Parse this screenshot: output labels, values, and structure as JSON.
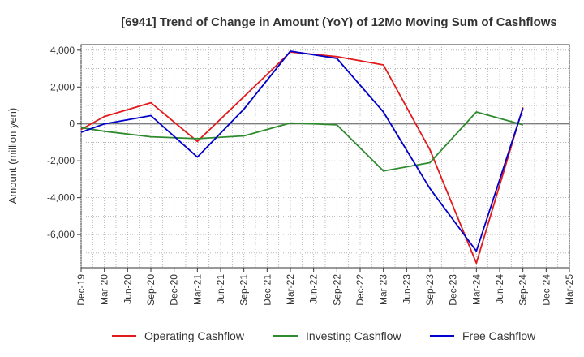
{
  "chart_data": {
    "type": "line",
    "title": "[6941]  Trend of Change in Amount (YoY) of 12Mo Moving Sum of Cashflows",
    "xlabel": "",
    "ylabel": "Amount (million yen)",
    "x": [
      "Dec-19",
      "Mar-20",
      "Jun-20",
      "Sep-20",
      "Dec-20",
      "Mar-21",
      "Jun-21",
      "Sep-21",
      "Dec-21",
      "Mar-22",
      "Jun-22",
      "Sep-22",
      "Dec-22",
      "Mar-23",
      "Jun-23",
      "Sep-23",
      "Dec-23",
      "Mar-24",
      "Jun-24",
      "Sep-24",
      "Dec-24",
      "Mar-25"
    ],
    "ylim": [
      -7800,
      4300
    ],
    "yticks": [
      4000,
      2000,
      0,
      -2000,
      -4000,
      -6000
    ],
    "ytick_labels": [
      "4,000",
      "2,000",
      "0",
      "-2,000",
      "-4,000",
      "-6,000"
    ],
    "grid": true,
    "legend_position": "bottom",
    "series": [
      {
        "name": "Operating Cashflow",
        "color": "#e31a1c",
        "values": [
          -300,
          400,
          null,
          1150,
          null,
          -950,
          null,
          null,
          null,
          3900,
          null,
          3650,
          null,
          3200,
          null,
          -1400,
          null,
          -7550,
          null,
          900,
          null,
          null
        ]
      },
      {
        "name": "Investing Cashflow",
        "color": "#2e8b2e",
        "values": [
          -200,
          -400,
          null,
          -700,
          null,
          -800,
          null,
          -650,
          null,
          50,
          null,
          -50,
          null,
          -2550,
          null,
          -2100,
          null,
          650,
          null,
          -50,
          null,
          null
        ]
      },
      {
        "name": "Free Cashflow",
        "color": "#0000cc",
        "values": [
          -450,
          0,
          null,
          450,
          null,
          -1800,
          null,
          800,
          null,
          3950,
          null,
          3550,
          null,
          650,
          null,
          -3500,
          null,
          -6900,
          null,
          850,
          null,
          null
        ]
      }
    ]
  }
}
